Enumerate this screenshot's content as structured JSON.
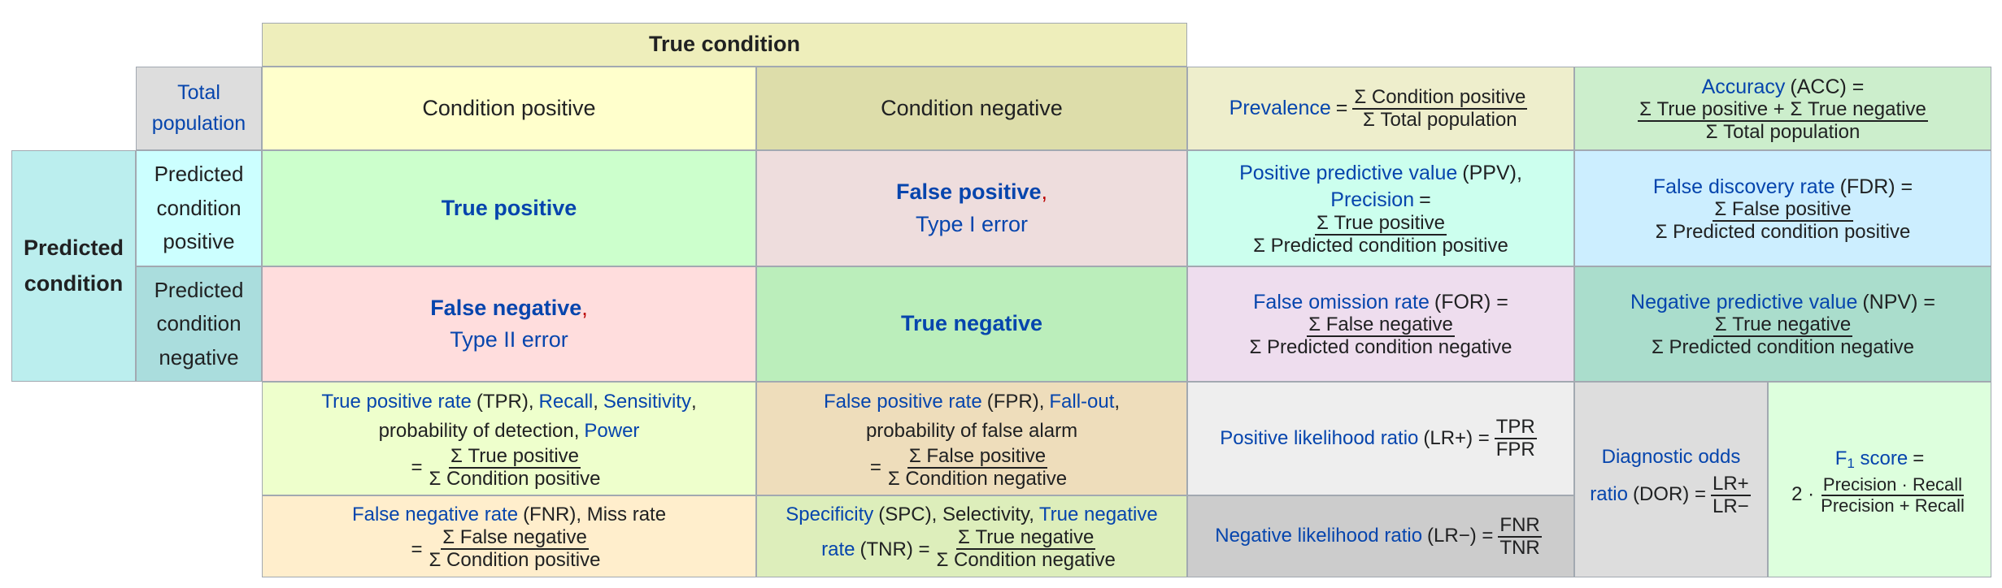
{
  "header": {
    "true_condition": "True condition",
    "total_population": [
      "Total",
      "population"
    ],
    "condition_positive": "Condition positive",
    "condition_negative": "Condition negative"
  },
  "predicted": {
    "group_label": [
      "Predicted",
      "condition"
    ],
    "positive_label": [
      "Predicted",
      "condition",
      "positive"
    ],
    "negative_label": [
      "Predicted",
      "condition",
      "negative"
    ]
  },
  "cells": {
    "true_positive": "True positive",
    "false_positive": "False positive",
    "type1": "Type I error",
    "false_negative": "False negative",
    "type2": "Type II error",
    "true_negative": "True negative",
    "comma": ","
  },
  "prevalence": {
    "label": "Prevalence",
    "eq": "=",
    "num": "Σ Condition positive",
    "den": "Σ Total population"
  },
  "accuracy": {
    "label": "Accuracy",
    "abbr": "(ACC) =",
    "num": "Σ True positive + Σ True negative",
    "den": "Σ Total population"
  },
  "ppv": {
    "label": "Positive predictive value",
    "abbr": "(PPV),",
    "label2": "Precision",
    "eq": "=",
    "num": "Σ True positive",
    "den": "Σ Predicted condition positive"
  },
  "fdr": {
    "label": "False discovery rate",
    "abbr": "(FDR) =",
    "num": "Σ False positive",
    "den": "Σ Predicted condition positive"
  },
  "for": {
    "label": "False omission rate",
    "abbr": "(FOR) =",
    "num": "Σ False negative",
    "den": "Σ Predicted condition negative"
  },
  "npv": {
    "label": "Negative predictive value",
    "abbr": "(NPV) =",
    "num": "Σ True negative",
    "den": "Σ Predicted condition negative"
  },
  "tpr": {
    "l1": "True positive rate",
    "abbr": "(TPR),",
    "l2": "Recall",
    "sep": ",",
    "l3": "Sensitivity",
    "end": ",",
    "line2": "probability of detection,",
    "l4": "Power",
    "eq": "=",
    "num": "Σ True positive",
    "den": "Σ Condition positive"
  },
  "fpr": {
    "l1": "False positive rate",
    "abbr": "(FPR),",
    "l2": "Fall-out",
    "end": ",",
    "line2": "probability of false alarm",
    "eq": "=",
    "num": "Σ False positive",
    "den": "Σ Condition negative"
  },
  "lrp": {
    "label": "Positive likelihood ratio",
    "abbr": "(LR+) =",
    "num": "TPR",
    "den": "FPR"
  },
  "dor": {
    "l1": "Diagnostic odds",
    "l2": "ratio",
    "abbr": "(DOR) =",
    "num": "LR+",
    "den": "LR−"
  },
  "f1": {
    "label": "F",
    "sub": "1",
    "label_end": "score",
    "eq": "=",
    "prefix": "2 ·",
    "num": "Precision · Recall",
    "den": "Precision + Recall"
  },
  "fnr": {
    "label": "False negative rate",
    "abbr": "(FNR), Miss rate",
    "eq": "=",
    "num": "Σ False negative",
    "den": "Σ Condition positive"
  },
  "spc": {
    "label": "Specificity",
    "abbr": "(SPC), Selectivity,",
    "l2": "True negative",
    "l3": "rate",
    "abbr2": "(TNR) =",
    "num": "Σ True negative",
    "den": "Σ Condition negative"
  },
  "lrn": {
    "label": "Negative likelihood ratio",
    "abbr": "(LR−) =",
    "num": "FNR",
    "den": "TNR"
  },
  "colors": {
    "true_condition": "#eeeebb",
    "total_population": "#dddddd",
    "condition_positive": "#ffffcc",
    "condition_negative": "#ddddaa",
    "predicted_condition": "#bbeeee",
    "pred_positive": "#ccffff",
    "pred_negative": "#aadddd",
    "tp": "#ccffcc",
    "fp": "#eedddd",
    "fn": "#ffdddd",
    "tn": "#bbeebb",
    "prevalence": "#eeeecc",
    "accuracy": "#cceecc",
    "ppv": "#ccffee",
    "fdr": "#cceeff",
    "for": "#eeddee",
    "npv": "#aaddcc",
    "tpr": "#eeffcc",
    "fpr": "#eeddbb",
    "lrp": "#eeeeee",
    "dor": "#dddddd",
    "f1": "#ddffdd",
    "fnr": "#ffeecc",
    "spc": "#ddeebb",
    "lrn": "#cccccc"
  }
}
